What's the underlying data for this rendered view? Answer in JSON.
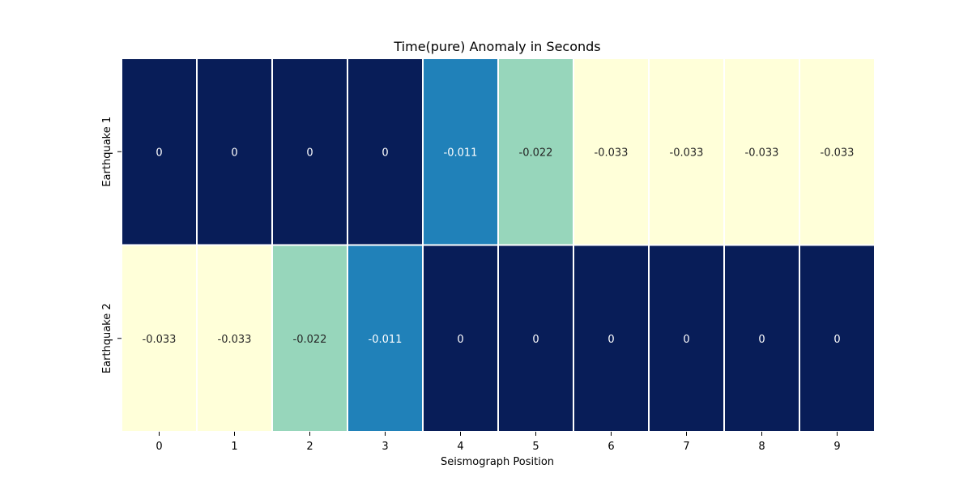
{
  "chart_data": {
    "type": "heatmap",
    "title": "Time(pure) Anomaly in Seconds",
    "xlabel": "Seismograph Position",
    "ylabel": "",
    "x_categories": [
      "0",
      "1",
      "2",
      "3",
      "4",
      "5",
      "6",
      "7",
      "8",
      "9"
    ],
    "y_categories": [
      "Earthquake 1",
      "Earthquake 2"
    ],
    "values": [
      [
        0,
        0,
        0,
        0,
        -0.011,
        -0.022,
        -0.033,
        -0.033,
        -0.033,
        -0.033
      ],
      [
        -0.033,
        -0.033,
        -0.022,
        -0.011,
        0,
        0,
        0,
        0,
        0,
        0
      ]
    ],
    "value_labels": [
      [
        "0",
        "0",
        "0",
        "0",
        "-0.011",
        "-0.022",
        "-0.033",
        "-0.033",
        "-0.033",
        "-0.033"
      ],
      [
        "-0.033",
        "-0.033",
        "-0.022",
        "-0.011",
        "0",
        "0",
        "0",
        "0",
        "0",
        "0"
      ]
    ],
    "colormap": "YlGnBu",
    "value_range": [
      -0.033,
      0
    ],
    "colors": {
      "0": "#081d58",
      "-0.011": "#2081b9",
      "-0.022": "#97d6bb",
      "-0.033": "#ffffd9"
    },
    "annotation_colors": {
      "dark_background": "#ffffff",
      "light_background": "#262626"
    },
    "grid_line_color": "#ffffff",
    "colorbar": false
  }
}
